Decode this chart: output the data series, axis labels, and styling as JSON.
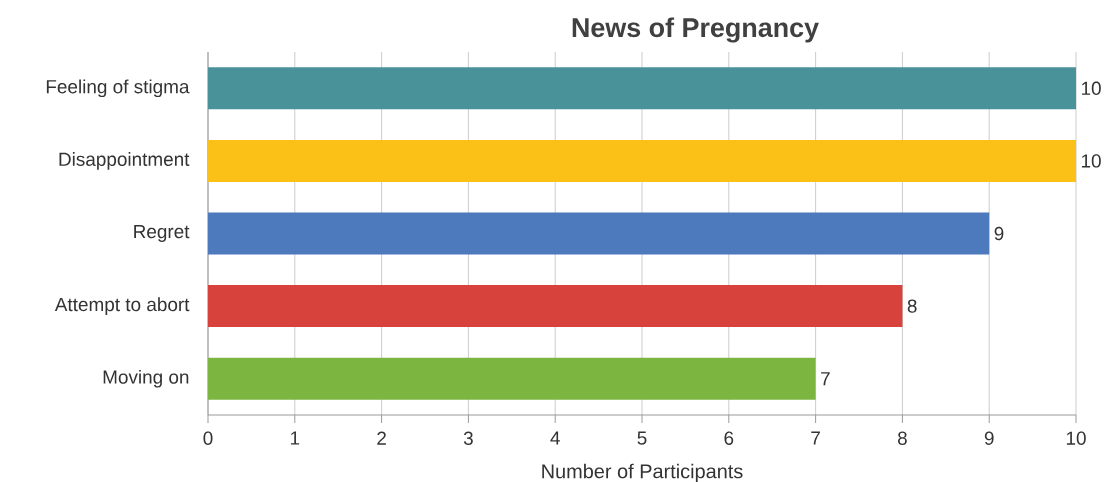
{
  "chart_data": {
    "type": "bar",
    "orientation": "horizontal",
    "title": "News of Pregnancy",
    "xlabel": "Number of Participants",
    "categories": [
      "Feeling of stigma",
      "Disappointment",
      "Regret",
      "Attempt to abort",
      "Moving on"
    ],
    "values": [
      10,
      10,
      9,
      8,
      7
    ],
    "colors": [
      "#4a9299",
      "#fbc117",
      "#4d79bd",
      "#d7423c",
      "#7db541"
    ],
    "xlim": [
      0,
      10
    ],
    "xticks": [
      0,
      1,
      2,
      3,
      4,
      5,
      6,
      7,
      8,
      9,
      10
    ],
    "grid": "x",
    "data_labels": true
  }
}
